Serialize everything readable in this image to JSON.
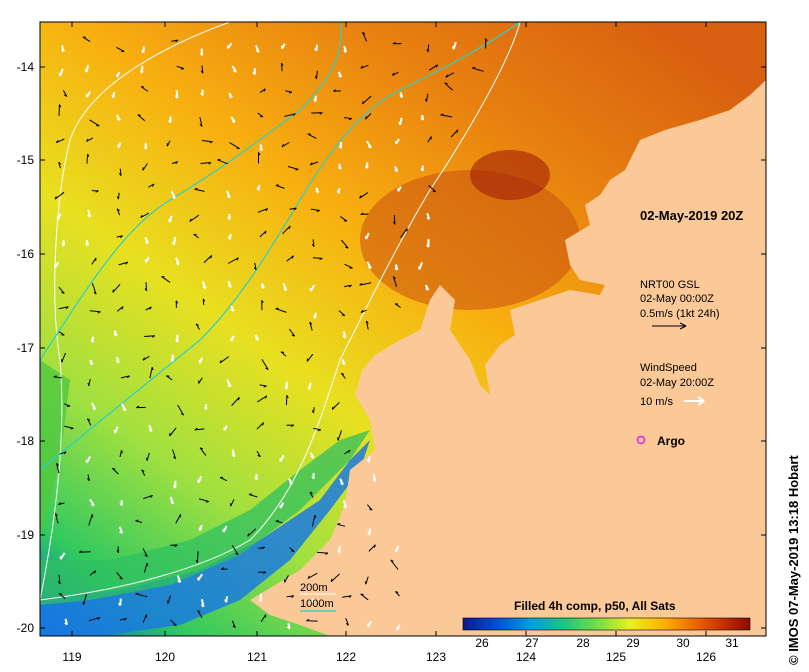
{
  "map": {
    "timestamp": "02-May-2019 20Z",
    "credit": "© IMOS 07-May-2019 13:18 Hobart",
    "x_ticks": [
      "119",
      "120",
      "121",
      "122",
      "123",
      "124",
      "125",
      "126"
    ],
    "y_ticks": [
      "-14",
      "-15",
      "-16",
      "-17",
      "-18",
      "-19",
      "-20"
    ]
  },
  "legend": {
    "currents": {
      "title": "NRT00 GSL",
      "time": "02-May 00:00Z",
      "scale": "0.5m/s (1kt 24h)"
    },
    "wind": {
      "title": "WindSpeed",
      "time": "02-May 20:00Z",
      "scale": "10 m/s"
    },
    "argo": {
      "label": "Argo",
      "color": "#e020e0"
    },
    "isobaths": [
      {
        "label": "200m",
        "color": "#ffffff"
      },
      {
        "label": "1000m",
        "color": "#2ad0c8"
      }
    ]
  },
  "colorbar": {
    "title": "Filled 4h comp, p50, All Sats",
    "ticks": [
      "26",
      "27",
      "28",
      "29",
      "30",
      "31"
    ],
    "colors": [
      "#0a1a8c",
      "#0050d8",
      "#00a0e0",
      "#20c878",
      "#80e040",
      "#e8f020",
      "#ffb000",
      "#e86000",
      "#c02800",
      "#8a0a00"
    ]
  },
  "land_color": "#fbc898"
}
